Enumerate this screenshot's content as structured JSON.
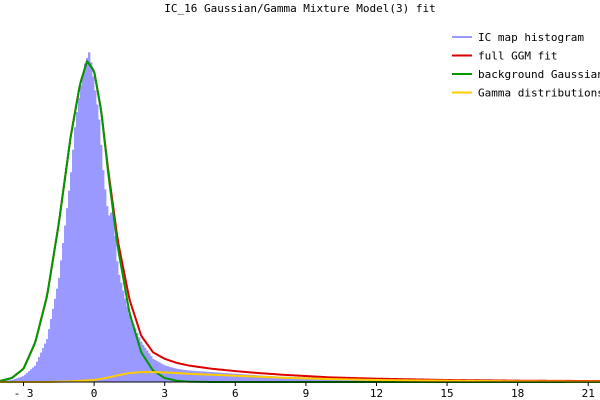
{
  "chart_data": {
    "type": "area",
    "title": "IC_16 Gaussian/Gamma Mixture Model(3) fit",
    "xlim": [
      -4,
      21.5
    ],
    "ylim": [
      0,
      1.07
    ],
    "x_ticks": [
      {
        "value": -3,
        "label": "- 3"
      },
      {
        "value": 0,
        "label": "0"
      },
      {
        "value": 3,
        "label": "3"
      },
      {
        "value": 6,
        "label": "6"
      },
      {
        "value": 9,
        "label": "9"
      },
      {
        "value": 12,
        "label": "12"
      },
      {
        "value": 15,
        "label": "15"
      },
      {
        "value": 18,
        "label": "18"
      },
      {
        "value": 21,
        "label": "21"
      }
    ],
    "legend": {
      "placement": "top-right",
      "entries": [
        {
          "name": "IC map histogram",
          "color": "#9999ff"
        },
        {
          "name": "full GGM fit",
          "color": "#dd0000"
        },
        {
          "name": "background Gaussian",
          "color": "#009900"
        },
        {
          "name": "Gamma distributions",
          "color": "#ffcc00"
        }
      ]
    },
    "series": [
      {
        "name": "IC map histogram",
        "kind": "histogram",
        "color": "#9999ff",
        "x": [
          -4.0,
          -3.5,
          -3.0,
          -2.5,
          -2.0,
          -1.5,
          -1.0,
          -0.8,
          -0.6,
          -0.4,
          -0.2,
          0.0,
          0.2,
          0.4,
          0.6,
          0.8,
          1.0,
          1.5,
          2.0,
          2.5,
          3.0,
          3.5,
          4.0,
          5.0,
          6.0,
          7.0,
          8.0,
          10.0,
          12.0,
          15.0,
          18.0,
          21.0,
          21.5
        ],
        "values": [
          0.002,
          0.006,
          0.018,
          0.05,
          0.13,
          0.31,
          0.62,
          0.78,
          0.88,
          0.96,
          1.0,
          0.9,
          0.8,
          0.62,
          0.5,
          0.52,
          0.34,
          0.2,
          0.12,
          0.07,
          0.05,
          0.04,
          0.035,
          0.03,
          0.025,
          0.02,
          0.016,
          0.012,
          0.009,
          0.006,
          0.004,
          0.003,
          0.002
        ]
      },
      {
        "name": "full GGM fit",
        "kind": "line",
        "color": "#dd0000",
        "x": [
          -4.0,
          -3.5,
          -3.0,
          -2.5,
          -2.0,
          -1.5,
          -1.0,
          -0.6,
          -0.3,
          0.0,
          0.3,
          0.6,
          1.0,
          1.5,
          2.0,
          2.5,
          3.0,
          3.5,
          4.0,
          5.0,
          6.0,
          7.0,
          8.0,
          10.0,
          12.0,
          15.0,
          18.0,
          21.0,
          21.5
        ],
        "values": [
          0.003,
          0.012,
          0.04,
          0.12,
          0.26,
          0.48,
          0.74,
          0.9,
          0.97,
          0.94,
          0.82,
          0.64,
          0.43,
          0.25,
          0.14,
          0.09,
          0.07,
          0.058,
          0.05,
          0.04,
          0.033,
          0.027,
          0.022,
          0.014,
          0.01,
          0.006,
          0.004,
          0.003,
          0.003
        ]
      },
      {
        "name": "background Gaussian",
        "kind": "line",
        "color": "#009900",
        "x": [
          -4.0,
          -3.5,
          -3.0,
          -2.5,
          -2.0,
          -1.5,
          -1.0,
          -0.6,
          -0.3,
          0.0,
          0.3,
          0.6,
          1.0,
          1.5,
          2.0,
          2.5,
          3.0,
          3.5,
          4.0,
          5.0,
          6.0,
          8.0,
          21.5
        ],
        "values": [
          0.003,
          0.012,
          0.04,
          0.12,
          0.26,
          0.48,
          0.74,
          0.9,
          0.97,
          0.94,
          0.82,
          0.63,
          0.41,
          0.21,
          0.09,
          0.035,
          0.012,
          0.004,
          0.001,
          0.0,
          0.0,
          0.0,
          0.0
        ]
      },
      {
        "name": "Gamma distributions",
        "kind": "line",
        "color": "#ffcc00",
        "x": [
          -4.0,
          -2.0,
          -1.0,
          0.0,
          0.5,
          1.0,
          1.5,
          2.0,
          2.5,
          3.0,
          3.5,
          4.0,
          5.0,
          6.0,
          7.0,
          8.0,
          10.0,
          12.0,
          15.0,
          18.0,
          21.0,
          21.5
        ],
        "values": [
          0.0,
          0.0,
          0.002,
          0.006,
          0.012,
          0.02,
          0.027,
          0.03,
          0.03,
          0.029,
          0.027,
          0.025,
          0.022,
          0.019,
          0.016,
          0.013,
          0.009,
          0.006,
          0.004,
          0.002,
          0.001,
          0.001
        ]
      }
    ]
  }
}
